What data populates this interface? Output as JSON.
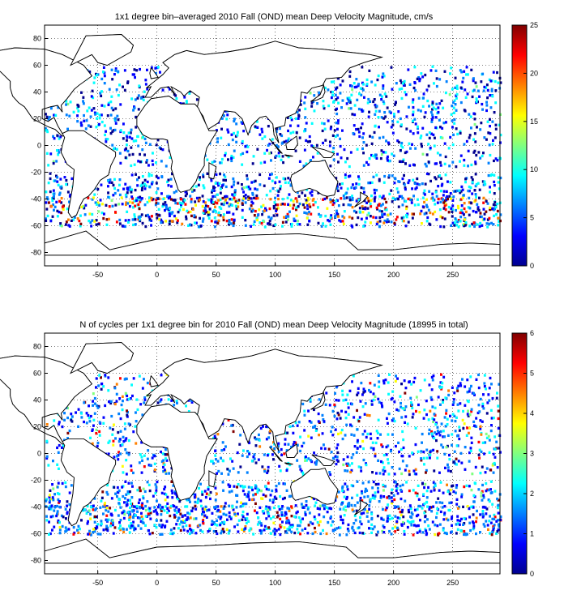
{
  "chart_data": [
    {
      "type": "heatmap",
      "title": "1x1 degree bin–averaged 2010 Fall (OND) mean Deep Velocity Magnitude, cm/s",
      "xlabel": "",
      "ylabel": "",
      "xlim": [
        -95,
        290
      ],
      "ylim": [
        -90,
        90
      ],
      "xticks": [
        "-50",
        "0",
        "50",
        "100",
        "150",
        "200",
        "250"
      ],
      "yticks": [
        "80",
        "60",
        "40",
        "20",
        "0",
        "-20",
        "-40",
        "-60",
        "-80"
      ],
      "grid": true,
      "colormap": "jet",
      "colorbar": {
        "min": 0,
        "max": 25,
        "ticks": [
          "25",
          "20",
          "15",
          "10",
          "5",
          "0"
        ]
      }
    },
    {
      "type": "heatmap",
      "title": "N of cycles per 1x1 degree bin for 2010 Fall (OND) mean Deep Velocity Magnitude (18995 in total)",
      "xlabel": "",
      "ylabel": "",
      "xlim": [
        -95,
        290
      ],
      "ylim": [
        -90,
        90
      ],
      "xticks": [
        "-50",
        "0",
        "50",
        "100",
        "150",
        "200",
        "250"
      ],
      "yticks": [
        "80",
        "60",
        "40",
        "20",
        "0",
        "-20",
        "-40",
        "-60",
        "-80"
      ],
      "grid": true,
      "colormap": "jet",
      "colorbar": {
        "min": 0,
        "max": 6,
        "ticks": [
          "6",
          "5",
          "4",
          "3",
          "2",
          "1",
          "0"
        ]
      }
    }
  ],
  "colors": {
    "jet": [
      "#00008f",
      "#0000ff",
      "#0080ff",
      "#00ffff",
      "#80ff80",
      "#ffff00",
      "#ff8000",
      "#ff0000",
      "#800000"
    ],
    "land_outline": "#000000",
    "grid": "#000000"
  }
}
